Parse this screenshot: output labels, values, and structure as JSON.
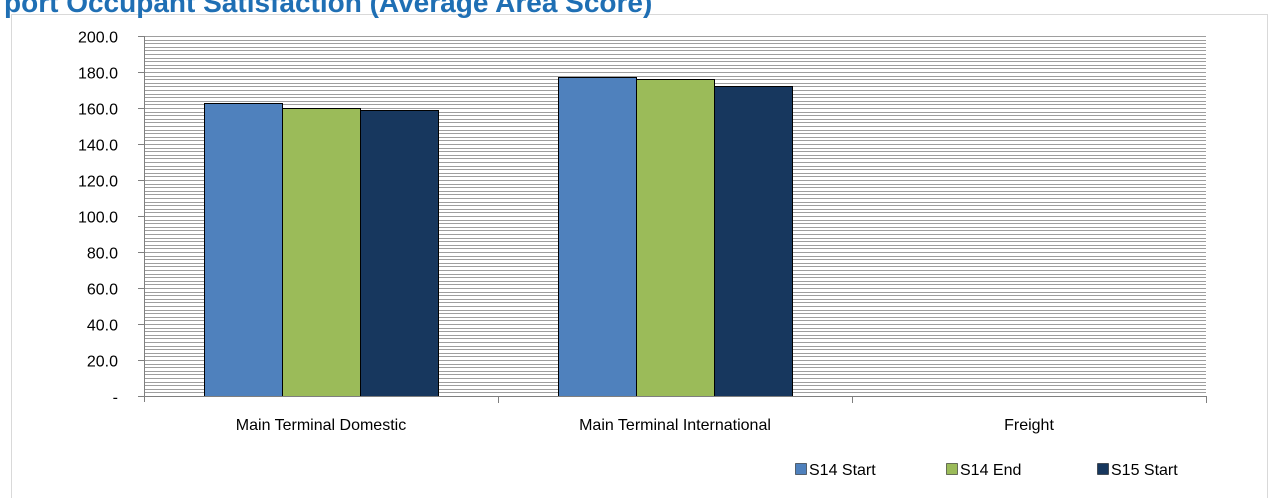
{
  "page": {
    "title": "port Occupant Satisfaction (Average Area Score)"
  },
  "colors": {
    "grid": "#9e9e9e",
    "axis": "#7f7f7f",
    "title": "#1f6fb4",
    "bar_outline": "#000000"
  },
  "chart_data": {
    "type": "bar",
    "title": "port Occupant Satisfaction (Average Area Score)",
    "xlabel": "",
    "ylabel": "",
    "ylim": [
      0,
      200
    ],
    "yticks": [
      {
        "value": 0,
        "label": "-"
      },
      {
        "value": 20,
        "label": "20.0"
      },
      {
        "value": 40,
        "label": "40.0"
      },
      {
        "value": 60,
        "label": "60.0"
      },
      {
        "value": 80,
        "label": "80.0"
      },
      {
        "value": 100,
        "label": "100.0"
      },
      {
        "value": 120,
        "label": "120.0"
      },
      {
        "value": 140,
        "label": "140.0"
      },
      {
        "value": 160,
        "label": "160.0"
      },
      {
        "value": 180,
        "label": "180.0"
      },
      {
        "value": 200,
        "label": "200.0"
      }
    ],
    "minor_grid_step": 2,
    "grid": true,
    "legend_position": "bottom-right",
    "categories": [
      "Main Terminal Domestic",
      "Main Terminal International",
      "Freight"
    ],
    "series": [
      {
        "name": "S14 Start",
        "color": "#4f81bd",
        "values": [
          163,
          177,
          null
        ]
      },
      {
        "name": "S14 End",
        "color": "#9bbb59",
        "values": [
          160,
          176,
          null
        ]
      },
      {
        "name": "S15 Start",
        "color": "#17375e",
        "values": [
          159,
          172,
          null
        ]
      }
    ]
  }
}
